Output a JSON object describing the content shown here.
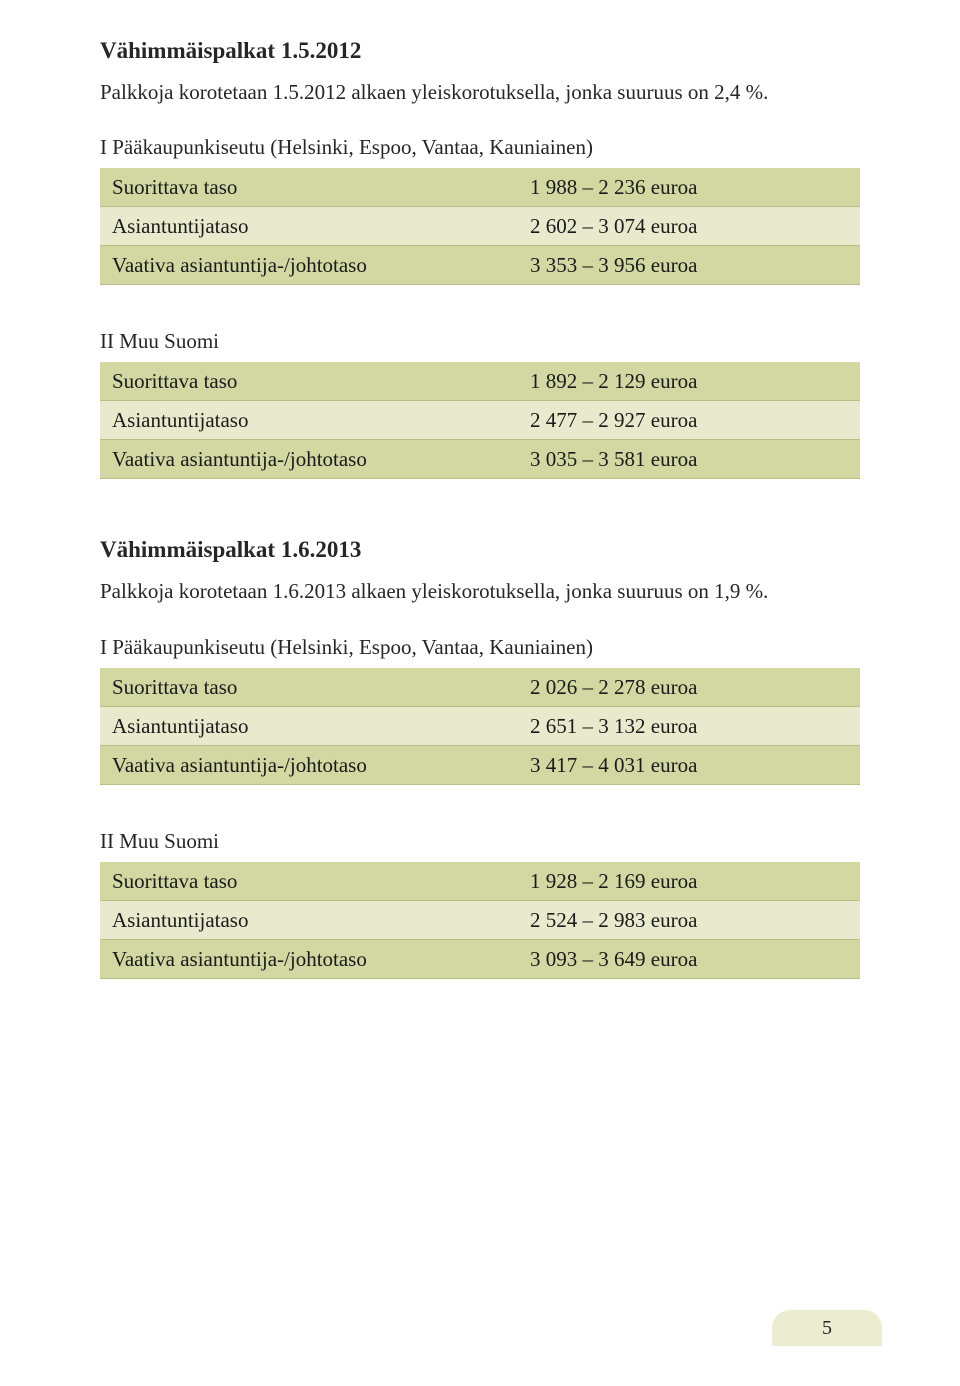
{
  "styles": {
    "heading_fontsize": 23,
    "body_fontsize": 21,
    "row_odd_bg": "#d3d7a2",
    "row_even_bg": "#e9eacd",
    "row_border": "#b9bd86",
    "footer_bg": "#ebecd0",
    "page_num_fontsize": 20
  },
  "sections": [
    {
      "heading": "Vähimmäispalkat 1.5.2012",
      "intro": "Palkkoja korotetaan 1.5.2012 alkaen yleiskorotuksella, jonka suuruus on 2,4 %.",
      "tables": [
        {
          "subhead": "I Pääkaupunkiseutu (Helsinki, Espoo, Vantaa, Kauniainen)",
          "rows": [
            {
              "label": "Suorittava taso",
              "value": "1 988 – 2 236 euroa"
            },
            {
              "label": "Asiantuntijataso",
              "value": "2 602 – 3 074 euroa"
            },
            {
              "label": "Vaativa asiantuntija-/johtotaso",
              "value": "3 353 – 3 956 euroa"
            }
          ]
        },
        {
          "subhead": "II Muu Suomi",
          "rows": [
            {
              "label": "Suorittava taso",
              "value": "1 892 – 2 129 euroa"
            },
            {
              "label": "Asiantuntijataso",
              "value": "2 477 – 2 927 euroa"
            },
            {
              "label": "Vaativa asiantuntija-/johtotaso",
              "value": "3 035 – 3 581 euroa"
            }
          ]
        }
      ]
    },
    {
      "heading": "Vähimmäispalkat 1.6.2013",
      "intro": "Palkkoja korotetaan 1.6.2013 alkaen yleiskorotuksella, jonka suuruus on 1,9 %.",
      "tables": [
        {
          "subhead": "I Pääkaupunkiseutu (Helsinki, Espoo, Vantaa, Kauniainen)",
          "rows": [
            {
              "label": "Suorittava taso",
              "value": "2 026 – 2 278 euroa"
            },
            {
              "label": "Asiantuntijataso",
              "value": "2 651 – 3 132 euroa"
            },
            {
              "label": "Vaativa asiantuntija-/johtotaso",
              "value": "3 417 – 4 031 euroa"
            }
          ]
        },
        {
          "subhead": "II Muu Suomi",
          "rows": [
            {
              "label": "Suorittava taso",
              "value": "1 928 – 2 169 euroa"
            },
            {
              "label": "Asiantuntijataso",
              "value": "2 524 – 2 983 euroa"
            },
            {
              "label": "Vaativa asiantuntija-/johtotaso",
              "value": "3 093 – 3 649 euroa"
            }
          ]
        }
      ]
    }
  ],
  "page_number": "5"
}
